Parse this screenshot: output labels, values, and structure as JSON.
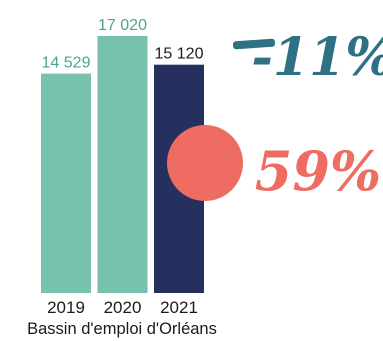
{
  "chart_data": {
    "type": "bar",
    "categories": [
      "2019",
      "2020",
      "2021"
    ],
    "values": [
      14529,
      17020,
      15120
    ],
    "value_labels": [
      "14 529",
      "17 020",
      "15 120"
    ],
    "colors": [
      "#76c2ae",
      "#76c2ae",
      "#25305f"
    ],
    "label_colors": [
      "#4aa68e",
      "#4aa68e",
      "#1b1b1b"
    ],
    "caption": "Bassin d'emploi d'Orléans",
    "ylim": [
      0,
      17020
    ],
    "grid": false
  },
  "annotations": {
    "change_label": "-11%",
    "change_color": "#2e7185",
    "share_label": "59%",
    "share_color": "#ee6c62",
    "circle_color": "#ee6c62"
  }
}
